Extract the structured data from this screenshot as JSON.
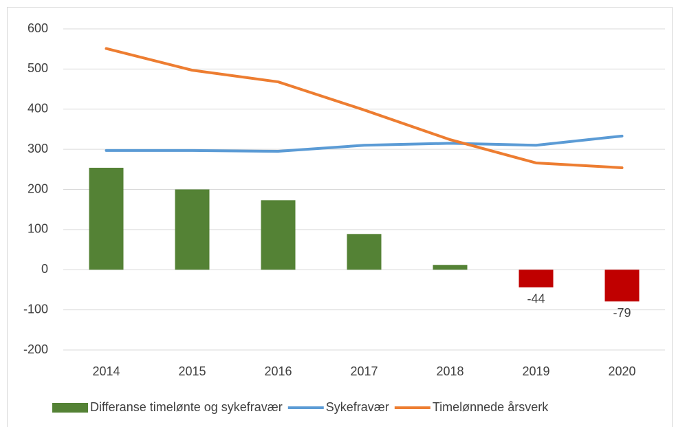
{
  "chart_data": {
    "type": "bar_line",
    "categories": [
      "2014",
      "2015",
      "2016",
      "2017",
      "2018",
      "2019",
      "2020"
    ],
    "series": [
      {
        "name": "Differanse timelønte og sykefravær",
        "type": "bar",
        "color": "#548235",
        "negative_color": "#c00000",
        "values": [
          254,
          200,
          173,
          89,
          12,
          -44,
          -79
        ],
        "value_labels": [
          null,
          null,
          null,
          null,
          null,
          "-44",
          "-79"
        ]
      },
      {
        "name": "Sykefravær",
        "type": "line",
        "color": "#5b9bd5",
        "values": [
          297,
          297,
          295,
          310,
          315,
          310,
          333
        ]
      },
      {
        "name": "Timelønnede årsverk",
        "type": "line",
        "color": "#ed7d31",
        "values": [
          551,
          497,
          468,
          398,
          324,
          266,
          254
        ]
      }
    ],
    "ylim": [
      -200,
      600
    ],
    "yticks": [
      -200,
      -100,
      0,
      100,
      200,
      300,
      400,
      500,
      600
    ],
    "grid": true,
    "legend": "bottom"
  }
}
